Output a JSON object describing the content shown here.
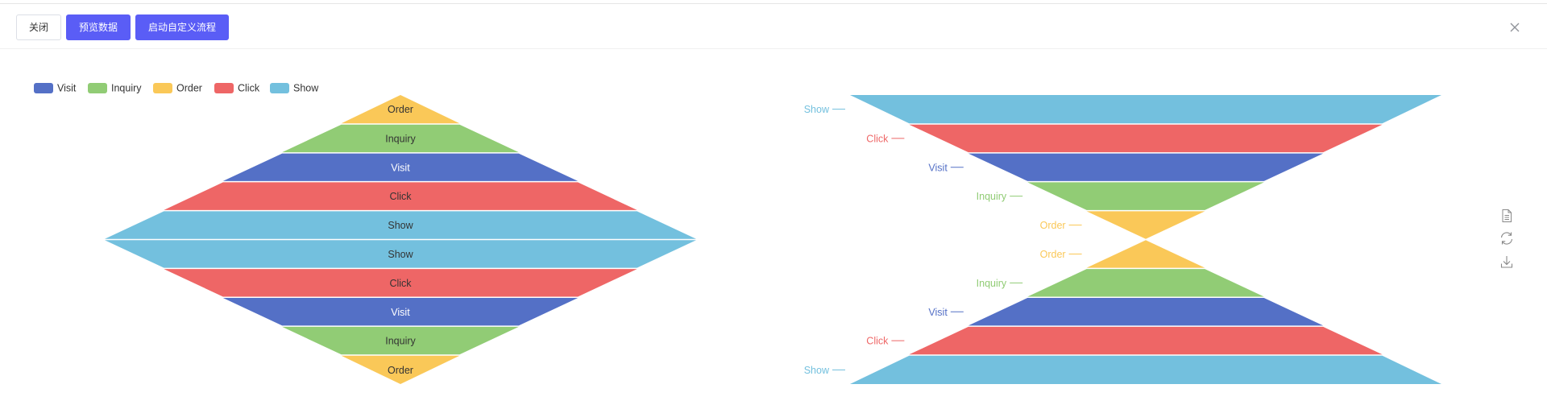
{
  "toolbar": {
    "close_label": "关闭",
    "preview_label": "预览数据",
    "start_label": "启动自定义流程"
  },
  "colors": {
    "Visit": "#5470c6",
    "Inquiry": "#91cc75",
    "Order": "#fac858",
    "Click": "#ee6666",
    "Show": "#73c0de",
    "primary": "#5a5df6"
  },
  "side_tools": [
    "data-view-icon",
    "restore-icon",
    "save-image-icon"
  ],
  "chart_data": [
    {
      "type": "funnel",
      "variant": "diamond",
      "legend": [
        "Visit",
        "Inquiry",
        "Order",
        "Click",
        "Show"
      ],
      "legend_position": "top-left",
      "label_position": "inside",
      "series": [
        {
          "sort": "ascending",
          "data": [
            {
              "name": "Order",
              "value": 20
            },
            {
              "name": "Inquiry",
              "value": 40
            },
            {
              "name": "Visit",
              "value": 60
            },
            {
              "name": "Click",
              "value": 80
            },
            {
              "name": "Show",
              "value": 100
            }
          ]
        },
        {
          "sort": "descending",
          "data": [
            {
              "name": "Show",
              "value": 100
            },
            {
              "name": "Click",
              "value": 80
            },
            {
              "name": "Visit",
              "value": 60
            },
            {
              "name": "Inquiry",
              "value": 40
            },
            {
              "name": "Order",
              "value": 20
            }
          ]
        }
      ]
    },
    {
      "type": "funnel",
      "variant": "hourglass",
      "label_position": "left",
      "series": [
        {
          "sort": "descending",
          "data": [
            {
              "name": "Show",
              "value": 100
            },
            {
              "name": "Click",
              "value": 80
            },
            {
              "name": "Visit",
              "value": 60
            },
            {
              "name": "Inquiry",
              "value": 40
            },
            {
              "name": "Order",
              "value": 20
            }
          ]
        },
        {
          "sort": "ascending",
          "data": [
            {
              "name": "Order",
              "value": 20
            },
            {
              "name": "Inquiry",
              "value": 40
            },
            {
              "name": "Visit",
              "value": 60
            },
            {
              "name": "Click",
              "value": 80
            },
            {
              "name": "Show",
              "value": 100
            }
          ]
        }
      ]
    }
  ]
}
